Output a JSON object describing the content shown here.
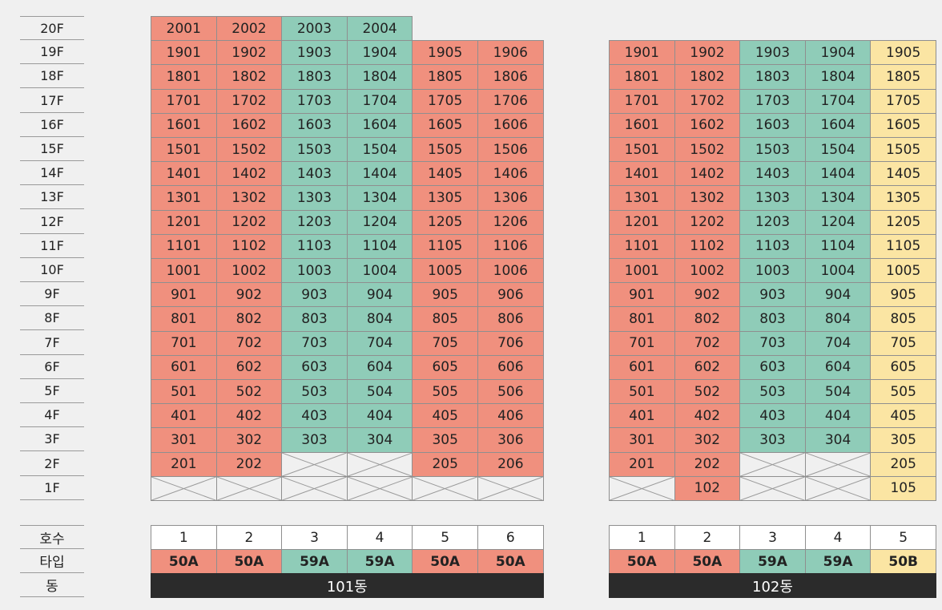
{
  "floors": [
    "20F",
    "19F",
    "18F",
    "17F",
    "16F",
    "15F",
    "14F",
    "13F",
    "12F",
    "11F",
    "10F",
    "9F",
    "8F",
    "7F",
    "6F",
    "5F",
    "4F",
    "3F",
    "2F",
    "1F"
  ],
  "row_labels": {
    "unit_no": "호수",
    "type": "타입",
    "building": "동"
  },
  "colors": {
    "pink": "#f0907e",
    "teal": "#8fccb8",
    "yellow": "#fbe5a3",
    "empty": "#f0f0f0",
    "dark": "#2b2b2b"
  },
  "buildings": [
    {
      "name": "101동",
      "columns": [
        {
          "unit": "1",
          "type": "50A",
          "color": "pink"
        },
        {
          "unit": "2",
          "type": "50A",
          "color": "pink"
        },
        {
          "unit": "3",
          "type": "59A",
          "color": "teal"
        },
        {
          "unit": "4",
          "type": "59A",
          "color": "teal"
        },
        {
          "unit": "5",
          "type": "50A",
          "color": "pink"
        },
        {
          "unit": "6",
          "type": "50A",
          "color": "pink"
        }
      ],
      "grid": [
        [
          "2001",
          "2002",
          "2003",
          "2004",
          null,
          null
        ],
        [
          "1901",
          "1902",
          "1903",
          "1904",
          "1905",
          "1906"
        ],
        [
          "1801",
          "1802",
          "1803",
          "1804",
          "1805",
          "1806"
        ],
        [
          "1701",
          "1702",
          "1703",
          "1704",
          "1705",
          "1706"
        ],
        [
          "1601",
          "1602",
          "1603",
          "1604",
          "1605",
          "1606"
        ],
        [
          "1501",
          "1502",
          "1503",
          "1504",
          "1505",
          "1506"
        ],
        [
          "1401",
          "1402",
          "1403",
          "1404",
          "1405",
          "1406"
        ],
        [
          "1301",
          "1302",
          "1303",
          "1304",
          "1305",
          "1306"
        ],
        [
          "1201",
          "1202",
          "1203",
          "1204",
          "1205",
          "1206"
        ],
        [
          "1101",
          "1102",
          "1103",
          "1104",
          "1105",
          "1106"
        ],
        [
          "1001",
          "1002",
          "1003",
          "1004",
          "1005",
          "1006"
        ],
        [
          "901",
          "902",
          "903",
          "904",
          "905",
          "906"
        ],
        [
          "801",
          "802",
          "803",
          "804",
          "805",
          "806"
        ],
        [
          "701",
          "702",
          "703",
          "704",
          "705",
          "706"
        ],
        [
          "601",
          "602",
          "603",
          "604",
          "605",
          "606"
        ],
        [
          "501",
          "502",
          "503",
          "504",
          "505",
          "506"
        ],
        [
          "401",
          "402",
          "403",
          "404",
          "405",
          "406"
        ],
        [
          "301",
          "302",
          "303",
          "304",
          "305",
          "306"
        ],
        [
          "201",
          "202",
          "X",
          "X",
          "205",
          "206"
        ],
        [
          "X",
          "X",
          "X",
          "X",
          "X",
          "X"
        ]
      ]
    },
    {
      "name": "102동",
      "columns": [
        {
          "unit": "1",
          "type": "50A",
          "color": "pink"
        },
        {
          "unit": "2",
          "type": "50A",
          "color": "pink"
        },
        {
          "unit": "3",
          "type": "59A",
          "color": "teal"
        },
        {
          "unit": "4",
          "type": "59A",
          "color": "teal"
        },
        {
          "unit": "5",
          "type": "50B",
          "color": "yellow"
        }
      ],
      "grid": [
        [
          null,
          null,
          null,
          null,
          null
        ],
        [
          "1901",
          "1902",
          "1903",
          "1904",
          "1905"
        ],
        [
          "1801",
          "1802",
          "1803",
          "1804",
          "1805"
        ],
        [
          "1701",
          "1702",
          "1703",
          "1704",
          "1705"
        ],
        [
          "1601",
          "1602",
          "1603",
          "1604",
          "1605"
        ],
        [
          "1501",
          "1502",
          "1503",
          "1504",
          "1505"
        ],
        [
          "1401",
          "1402",
          "1403",
          "1404",
          "1405"
        ],
        [
          "1301",
          "1302",
          "1303",
          "1304",
          "1305"
        ],
        [
          "1201",
          "1202",
          "1203",
          "1204",
          "1205"
        ],
        [
          "1101",
          "1102",
          "1103",
          "1104",
          "1105"
        ],
        [
          "1001",
          "1002",
          "1003",
          "1004",
          "1005"
        ],
        [
          "901",
          "902",
          "903",
          "904",
          "905"
        ],
        [
          "801",
          "802",
          "803",
          "804",
          "805"
        ],
        [
          "701",
          "702",
          "703",
          "704",
          "705"
        ],
        [
          "601",
          "602",
          "603",
          "604",
          "605"
        ],
        [
          "501",
          "502",
          "503",
          "504",
          "505"
        ],
        [
          "401",
          "402",
          "403",
          "404",
          "405"
        ],
        [
          "301",
          "302",
          "303",
          "304",
          "305"
        ],
        [
          "201",
          "202",
          "X",
          "X",
          "205"
        ],
        [
          "X",
          "102",
          "X",
          "X",
          "105"
        ]
      ]
    }
  ]
}
